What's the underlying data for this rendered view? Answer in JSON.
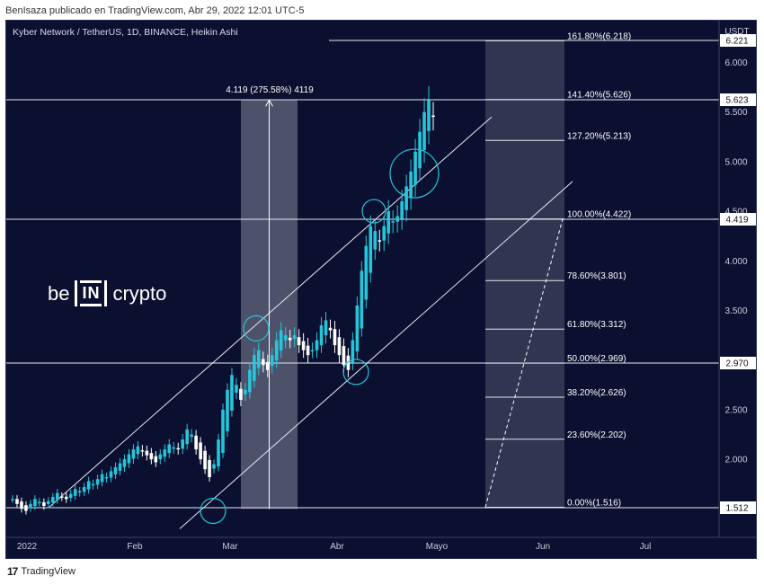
{
  "header": {
    "caption": "BenIsaza publicado en TradingView.com, Abr 29, 2022 12:01 UTC-5"
  },
  "chart": {
    "symbol": "Kyber Network / TetherUS, 1D, BINANCE, Heikin Ashi",
    "currency": "USDT"
  },
  "footer": {
    "brand": "TradingView"
  },
  "watermark": {
    "left": "be",
    "middle": "IN",
    "right": "crypto"
  },
  "colors": {
    "background": "#0b1030",
    "candle": "#26c6da",
    "candle_down": "#ffffff",
    "line": "#e6e8f0",
    "box": "#c8ccd8"
  },
  "chart_data": {
    "type": "candlestick",
    "title": "Kyber Network / TetherUS, 1D, BINANCE, Heikin Ashi",
    "x_ticks": [
      "2022",
      "Feb",
      "Mar",
      "Abr",
      "Mayo",
      "Jun",
      "Jul"
    ],
    "y_ticks": [
      2.0,
      2.5,
      3.0,
      3.5,
      4.0,
      4.5,
      5.0,
      5.5,
      6.0
    ],
    "y_tick_labels": [
      "2.000",
      "2.500",
      "3.000",
      "3.500",
      "4.000",
      "4.500",
      "5.000",
      "5.500",
      "6.000"
    ],
    "ylim": [
      1.3,
      6.55
    ],
    "price_labels": [
      "6.221",
      "5.623",
      "4.419",
      "2.970",
      "1.512"
    ],
    "price_values": [
      6.221,
      5.623,
      4.419,
      2.97,
      1.512
    ],
    "measure_label": "4.119 (275.58%) 4119",
    "measure": {
      "from": 1.5,
      "to": 5.62
    },
    "fib_levels": [
      {
        "label": "161.80%(6.218)",
        "value": 6.218
      },
      {
        "label": "141.40%(5.626)",
        "value": 5.626
      },
      {
        "label": "127.20%(5.213)",
        "value": 5.213
      },
      {
        "label": "100.00%(4.422)",
        "value": 4.422
      },
      {
        "label": "78.60%(3.801)",
        "value": 3.801
      },
      {
        "label": "61.80%(3.312)",
        "value": 3.312
      },
      {
        "label": "50.00%(2.969)",
        "value": 2.969
      },
      {
        "label": "38.20%(2.626)",
        "value": 2.626
      },
      {
        "label": "23.60%(2.202)",
        "value": 2.202
      },
      {
        "label": "0.00%(1.516)",
        "value": 1.516
      }
    ],
    "series": [
      {
        "values": [
          1.6,
          1.55,
          1.5,
          1.48,
          1.55,
          1.6,
          1.57,
          1.53,
          1.58,
          1.62,
          1.66,
          1.62,
          1.6,
          1.65,
          1.7,
          1.68,
          1.72,
          1.78,
          1.75,
          1.8,
          1.85,
          1.82,
          1.88,
          1.92,
          1.96,
          2.0,
          2.05,
          2.1,
          2.13,
          2.08,
          2.04,
          2.0,
          1.97,
          2.05,
          2.1,
          2.15,
          2.12,
          2.1,
          2.2,
          2.3,
          2.25,
          2.1,
          2.0,
          1.9,
          1.82,
          1.95,
          2.2,
          2.5,
          2.7,
          2.85,
          2.75,
          2.6,
          2.7,
          2.9,
          3.05,
          3.1,
          2.95,
          2.9,
          3.05,
          3.2,
          3.3,
          3.25,
          3.2,
          3.25,
          3.15,
          3.1,
          3.05,
          3.1,
          3.2,
          3.35,
          3.4,
          3.3,
          3.15,
          3.05,
          2.95,
          2.9,
          3.2,
          3.55,
          3.9,
          4.15,
          4.35,
          4.3,
          4.2,
          4.35,
          4.5,
          4.4,
          4.45,
          4.6,
          4.75,
          4.9,
          5.1,
          5.3,
          5.5,
          5.62,
          5.45
        ]
      }
    ]
  }
}
